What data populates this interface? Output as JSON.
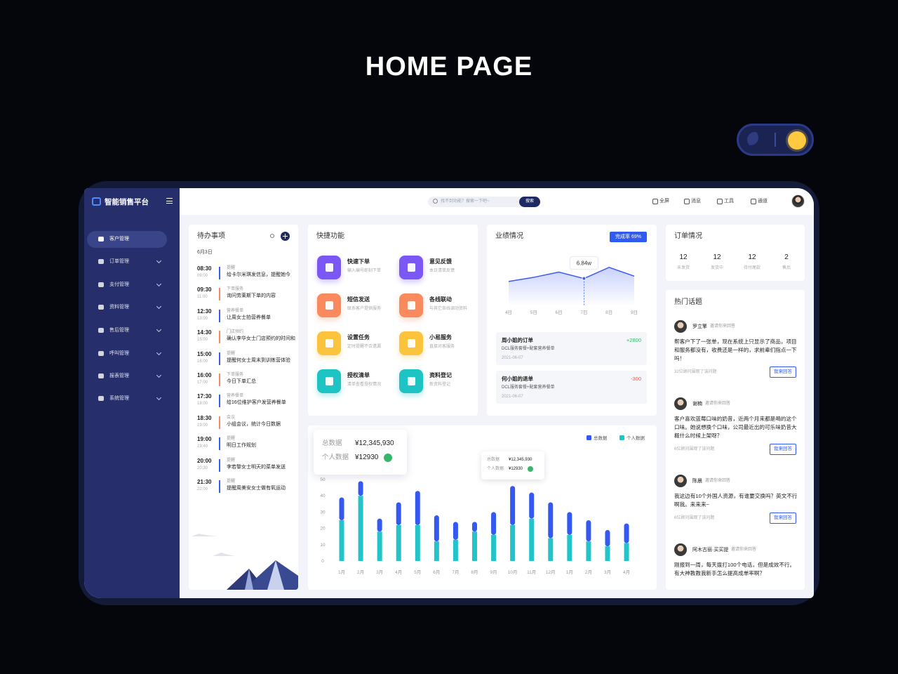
{
  "header": {
    "title": "HOME PAGE"
  },
  "sidebar": {
    "logo": "智能销售平台",
    "menu": [
      "客户管理",
      "订单管理",
      "支付管理",
      "资料管理",
      "售后管理",
      "呼叫管理",
      "报表管理",
      "系统管理"
    ]
  },
  "topbar": {
    "search_placeholder": "找不到功能？搜索一下吧~",
    "search_button": "搜索",
    "actions": [
      "全屏",
      "消息",
      "工具",
      "通道"
    ]
  },
  "todo": {
    "title": "待办事项",
    "date": "6月3日",
    "items": [
      {
        "start": "08:30",
        "end": "09:00",
        "tag": "提醒",
        "text": "给卡尔米琪发信息，提醒她今",
        "color": "#3b5bf5"
      },
      {
        "start": "09:30",
        "end": "11:00",
        "tag": "下单服务",
        "text": "询问劳莱斯下单的内容",
        "color": "#f98a5d"
      },
      {
        "start": "12:30",
        "end": "13:00",
        "tag": "营养餐单",
        "text": "让周女士拍营养餐单",
        "color": "#3b5bf5"
      },
      {
        "start": "14:30",
        "end": "15:00",
        "tag": "门店预约",
        "text": "确认李华女士门店预约的时间和",
        "color": "#f98a5d"
      },
      {
        "start": "15:00",
        "end": "16:00",
        "tag": "提醒",
        "text": "提醒何女士周末到训练营体验",
        "color": "#3b5bf5"
      },
      {
        "start": "16:00",
        "end": "17:00",
        "tag": "下单服务",
        "text": "今日下单汇总",
        "color": "#f98a5d"
      },
      {
        "start": "17:30",
        "end": "18:00",
        "tag": "营养餐单",
        "text": "给16位维护客户发营养餐单",
        "color": "#3b5bf5"
      },
      {
        "start": "18:30",
        "end": "19:00",
        "tag": "会议",
        "text": "小组会议，统计今日数据",
        "color": "#f98a5d"
      },
      {
        "start": "19:00",
        "end": "19:40",
        "tag": "提醒",
        "text": "明日工作规划",
        "color": "#3b5bf5"
      },
      {
        "start": "20:00",
        "end": "20:30",
        "tag": "提醒",
        "text": "李若黎女士明天的菜单发送",
        "color": "#3b5bf5"
      },
      {
        "start": "21:30",
        "end": "22:00",
        "tag": "提醒",
        "text": "提醒周美安女士做有氧运动",
        "color": "#3b5bf5"
      }
    ]
  },
  "shortcuts": {
    "title": "快捷功能",
    "items": [
      {
        "name": "快速下单",
        "desc": "输入编号即刻下单",
        "color": "#7b57f5"
      },
      {
        "name": "意见反馈",
        "desc": "本日清单反馈",
        "color": "#7b57f5"
      },
      {
        "name": "短信发送",
        "desc": "联系客户提供服务",
        "color": "#f98a5d"
      },
      {
        "name": "各线联动",
        "desc": "与其它各线调动资料",
        "color": "#f98a5d"
      },
      {
        "name": "设置任务",
        "desc": "定时提醒不合遗漏",
        "color": "#fcc43d"
      },
      {
        "name": "小易服务",
        "desc": "直接对客服务",
        "color": "#fcc43d"
      },
      {
        "name": "授权清单",
        "desc": "清单查看授权情况",
        "color": "#1ec3c3"
      },
      {
        "name": "资料登记",
        "desc": "新资料登记",
        "color": "#1ec3c3"
      }
    ]
  },
  "performance": {
    "title": "业绩情况",
    "badge": "完成率 69%",
    "orders": [
      {
        "name": "周小姐的订单",
        "amount": "+2800",
        "desc": "DCL服务套餐+配套营养餐单",
        "date": "2021-06-07",
        "color": "#3cb371"
      },
      {
        "name": "何小姐的退单",
        "amount": "-300",
        "desc": "DCL服务套餐+配套营养餐单",
        "date": "2021-06-07",
        "color": "#f05a4a"
      }
    ]
  },
  "orders": {
    "title": "订单情况",
    "stats": [
      {
        "value": 12,
        "label": "未发货"
      },
      {
        "value": 12,
        "label": "发货中"
      },
      {
        "value": 12,
        "label": "待付尾款"
      },
      {
        "value": 2,
        "label": "售后"
      }
    ]
  },
  "topics": {
    "title": "热门话题",
    "posts": [
      {
        "name": "罗立擎",
        "invite": "邀请你来回答",
        "text": "帮客户下了一张单，现在系统上只显示了商品，项目和服务都没有，收费还是一样的，求前辈们指点一下吗！",
        "watchers": "32位顾问围观了该问题",
        "answer": "我来回答"
      },
      {
        "name": "谢楠",
        "invite": "邀请你来回答",
        "text": "客户喜欢蓝莓口味的奶昔，近两个月来都是喝的这个口味。她说想换个口味，公司最近出的可乐味奶昔大概什么时候上架呀？",
        "watchers": "6位顾问围观了该问题",
        "answer": "我来回答"
      },
      {
        "name": "陈晨",
        "invite": "邀请你来回答",
        "text": "我这边有10个外国人资源，有谁要交换吗？英文不行啊我。来来来~",
        "watchers": "6位顾问围观了该问题",
        "answer": "我来回答"
      },
      {
        "name": "阿木古丽·买买提",
        "invite": "邀请你来回答",
        "text": "刚报到一周，每天拨打100个电话，但是成效不行。有大神教教我新手怎么提高成单率啊？"
      }
    ]
  },
  "chart_data": [
    {
      "type": "line",
      "categories": [
        "4日",
        "5日",
        "6日",
        "7日",
        "8日",
        "9日"
      ],
      "values": [
        6.69,
        6.9,
        7.17,
        6.84,
        7.41,
        6.96
      ],
      "value_labels": [
        null,
        null,
        null,
        "6.84w",
        null,
        null
      ],
      "ylim": [
        6,
        7.8
      ],
      "color": "#3b5bf5"
    },
    {
      "type": "bar",
      "stacked": true,
      "categories": [
        "1月",
        "2月",
        "3月",
        "4月",
        "5月",
        "6月",
        "7月",
        "8月",
        "9月",
        "10月",
        "11月",
        "12月",
        "1月",
        "2月",
        "3月",
        "4月"
      ],
      "series": [
        {
          "name": "总数据",
          "color": "#3559f0",
          "values": [
            14,
            9,
            8,
            14,
            21,
            16,
            11,
            6,
            14,
            24,
            16,
            22,
            14,
            13,
            10,
            12
          ]
        },
        {
          "name": "个人数据",
          "color": "#22c3c9",
          "values": [
            25,
            40,
            18,
            22,
            22,
            12,
            13,
            18,
            16,
            22,
            26,
            14,
            16,
            12,
            9,
            11
          ]
        }
      ],
      "ylim": [
        0,
        50
      ],
      "yticks": [
        0,
        10,
        20,
        30,
        40,
        50
      ],
      "tooltip": {
        "total": "¥12,345,930",
        "personal": "¥12930"
      }
    }
  ]
}
